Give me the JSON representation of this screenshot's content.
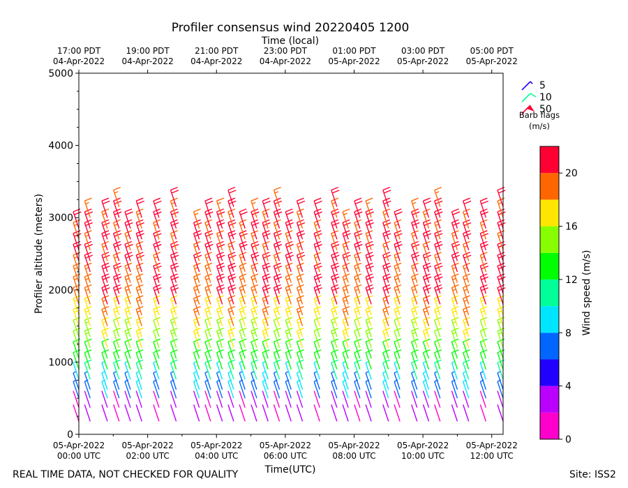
{
  "chart_data": {
    "type": "wind-barb-profile",
    "title": "Profiler consensus wind 20220405 1200",
    "xlabel": "Time(UTC)",
    "ylabel": "Profiler altitude (meters)",
    "top_axis_label": "Time (local)",
    "ylim": [
      0,
      5000
    ],
    "xlim_hours_utc": [
      0,
      12.33
    ],
    "y_ticks": [
      "0",
      "1000",
      "2000",
      "3000",
      "4000",
      "5000"
    ],
    "y_tick_values": [
      0,
      1000,
      2000,
      3000,
      4000,
      5000
    ],
    "x_ticks_bottom": [
      {
        "hour": 0,
        "line1": "05-Apr-2022",
        "line2": "00:00 UTC"
      },
      {
        "hour": 2,
        "line1": "05-Apr-2022",
        "line2": "02:00 UTC"
      },
      {
        "hour": 4,
        "line1": "05-Apr-2022",
        "line2": "04:00 UTC"
      },
      {
        "hour": 6,
        "line1": "05-Apr-2022",
        "line2": "06:00 UTC"
      },
      {
        "hour": 8,
        "line1": "05-Apr-2022",
        "line2": "08:00 UTC"
      },
      {
        "hour": 10,
        "line1": "05-Apr-2022",
        "line2": "10:00 UTC"
      },
      {
        "hour": 12,
        "line1": "05-Apr-2022",
        "line2": "12:00 UTC"
      }
    ],
    "x_ticks_top": [
      {
        "hour": 0,
        "line1": "17:00 PDT",
        "line2": "04-Apr-2022"
      },
      {
        "hour": 2,
        "line1": "19:00 PDT",
        "line2": "04-Apr-2022"
      },
      {
        "hour": 4,
        "line1": "21:00 PDT",
        "line2": "04-Apr-2022"
      },
      {
        "hour": 6,
        "line1": "23:00 PDT",
        "line2": "04-Apr-2022"
      },
      {
        "hour": 8,
        "line1": "01:00 PDT",
        "line2": "05-Apr-2022"
      },
      {
        "hour": 10,
        "line1": "03:00 PDT",
        "line2": "05-Apr-2022"
      },
      {
        "hour": 12,
        "line1": "05:00 PDT",
        "line2": "05-Apr-2022"
      }
    ],
    "barb_legend": {
      "entries": [
        "5",
        "10",
        "50"
      ],
      "colors": [
        "#2200ff",
        "#00ff99",
        "#ff0033"
      ],
      "caption_line1": "Barb flags",
      "caption_line2": "(m/s)"
    },
    "colorbar": {
      "label": "Wind speed (m/s)",
      "range": [
        0,
        22
      ],
      "ticks": [
        "0",
        "4",
        "8",
        "12",
        "16",
        "20"
      ],
      "tick_values": [
        0,
        4,
        8,
        12,
        16,
        20
      ],
      "levels": [
        {
          "min": 0,
          "max": 2,
          "color": "#ff00cc"
        },
        {
          "min": 2,
          "max": 4,
          "color": "#bb00ff"
        },
        {
          "min": 4,
          "max": 6,
          "color": "#2200ff"
        },
        {
          "min": 6,
          "max": 8,
          "color": "#0066ff"
        },
        {
          "min": 8,
          "max": 10,
          "color": "#00e5ff"
        },
        {
          "min": 10,
          "max": 12,
          "color": "#00ff99"
        },
        {
          "min": 12,
          "max": 14,
          "color": "#00ff00"
        },
        {
          "min": 14,
          "max": 16,
          "color": "#88ff00"
        },
        {
          "min": 16,
          "max": 18,
          "color": "#ffe600"
        },
        {
          "min": 18,
          "max": 20,
          "color": "#ff6600"
        },
        {
          "min": 20,
          "max": 22,
          "color": "#ff0033"
        }
      ]
    },
    "barb_times_utc": [
      0,
      0.33,
      0.83,
      1.17,
      1.5,
      1.83,
      2.33,
      2.83,
      3.5,
      3.83,
      4.17,
      4.5,
      4.83,
      5.17,
      5.5,
      5.83,
      6.17,
      6.5,
      7.0,
      7.5,
      7.83,
      8.17,
      8.5,
      9.0,
      9.33,
      9.83,
      10.17,
      10.5,
      11.0,
      11.33,
      11.83,
      12.33
    ],
    "barb_altitudes_m": [
      180,
      370,
      500,
      620,
      760,
      900,
      1050,
      1200,
      1350,
      1500,
      1650,
      1800,
      1950,
      2100,
      2250,
      2400,
      2550,
      2700,
      2850,
      3000,
      3150,
      3300
    ],
    "speed_profile_note": "Wind speed increases with height: ~1-4 m/s below 500 m, 8-12 m/s near 700-1000 m, 12-16 m/s 1000-1500 m, 16-22 m/s above 1500 m; winds mostly from the west-northwest aloft.",
    "footer_left": "REAL TIME DATA, NOT CHECKED FOR QUALITY",
    "footer_right": "Site: ISS2"
  }
}
